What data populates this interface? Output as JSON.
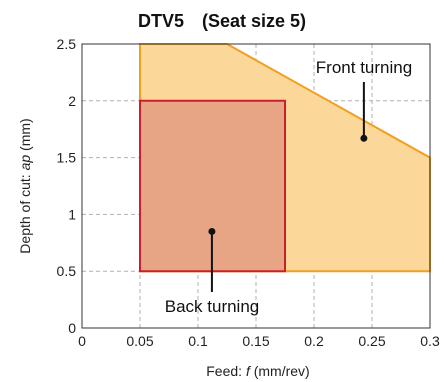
{
  "chart_data": {
    "type": "area",
    "title": "DTV5　(Seat size 5)",
    "xlabel": {
      "prefix": "Feed: ",
      "italic": "f",
      "suffix": " (mm/rev)"
    },
    "ylabel": {
      "prefix": "Depth of cut: ",
      "italic": "ap",
      "suffix": " (mm)"
    },
    "xlim": [
      0,
      0.3
    ],
    "ylim": [
      0,
      2.5
    ],
    "x_ticks": [
      "0",
      "0.05",
      "0.1",
      "0.15",
      "0.2",
      "0.25",
      "0.3"
    ],
    "y_ticks": [
      "0",
      "0.5",
      "1",
      "1.5",
      "2",
      "2.5"
    ],
    "grid": true,
    "regions": [
      {
        "name": "Front turning",
        "fill": "#fbd89a",
        "stroke": "#f0a020",
        "polygon": [
          [
            0.05,
            0.5
          ],
          [
            0.05,
            2.5
          ],
          [
            0.125,
            2.5
          ],
          [
            0.3,
            1.5
          ],
          [
            0.3,
            0.5
          ]
        ]
      },
      {
        "name": "Back turning",
        "fill": "#e8a585",
        "stroke": "#cc1f2d",
        "polygon": [
          [
            0.05,
            0.5
          ],
          [
            0.05,
            2.0
          ],
          [
            0.175,
            2.0
          ],
          [
            0.175,
            0.5
          ]
        ]
      }
    ],
    "annotations": [
      {
        "text": "Front turning",
        "point": [
          0.243,
          1.67
        ]
      },
      {
        "text": "Back turning",
        "point": [
          0.112,
          0.85
        ]
      }
    ]
  }
}
